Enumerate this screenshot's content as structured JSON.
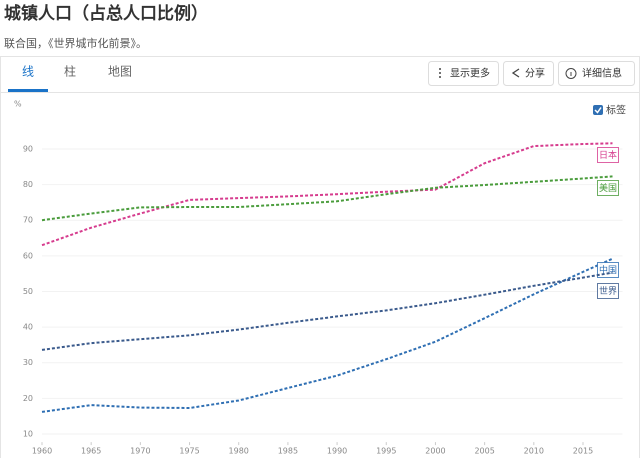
{
  "header": {
    "title": "城镇人口（占总人口比例）",
    "source": "联合国，《世界城市化前景》。"
  },
  "tabs": [
    "线",
    "柱",
    "地图"
  ],
  "buttons": [
    "显示更多",
    "分享",
    "详细信息"
  ],
  "label_toggle": "标签",
  "chart_data": {
    "type": "line",
    "y_label": "%",
    "x": [
      1960,
      1965,
      1970,
      1975,
      1980,
      1985,
      1990,
      1995,
      2000,
      2005,
      2010,
      2015,
      2018
    ],
    "xlim": [
      1960,
      2018
    ],
    "xticks": [
      1960,
      1965,
      1970,
      1975,
      1980,
      1985,
      1990,
      1995,
      2000,
      2005,
      2010,
      2015
    ],
    "ylim": [
      8,
      96
    ],
    "yticks": [
      10,
      20,
      30,
      40,
      50,
      60,
      70,
      80,
      90
    ],
    "grid": true,
    "series": [
      {
        "name": "日本",
        "color": "#d63c8e",
        "values": [
          63,
          67.9,
          71.9,
          75.7,
          76.2,
          76.7,
          77.3,
          78,
          78.6,
          86,
          90.8,
          91.4,
          91.6
        ]
      },
      {
        "name": "美国",
        "color": "#4a9c3c",
        "values": [
          70,
          71.9,
          73.6,
          73.7,
          73.7,
          74.5,
          75.3,
          77.3,
          79.1,
          79.9,
          80.8,
          81.7,
          82.3
        ]
      },
      {
        "name": "中国",
        "color": "#2f6fb3",
        "values": [
          16.2,
          18.1,
          17.4,
          17.3,
          19.4,
          22.9,
          26.4,
          31,
          35.9,
          42.5,
          49.2,
          55.5,
          59.2
        ]
      },
      {
        "name": "世界",
        "color": "#3a5a8c",
        "values": [
          33.6,
          35.5,
          36.6,
          37.7,
          39.3,
          41.2,
          43,
          44.7,
          46.7,
          49.1,
          51.6,
          53.9,
          55.3
        ]
      }
    ]
  }
}
